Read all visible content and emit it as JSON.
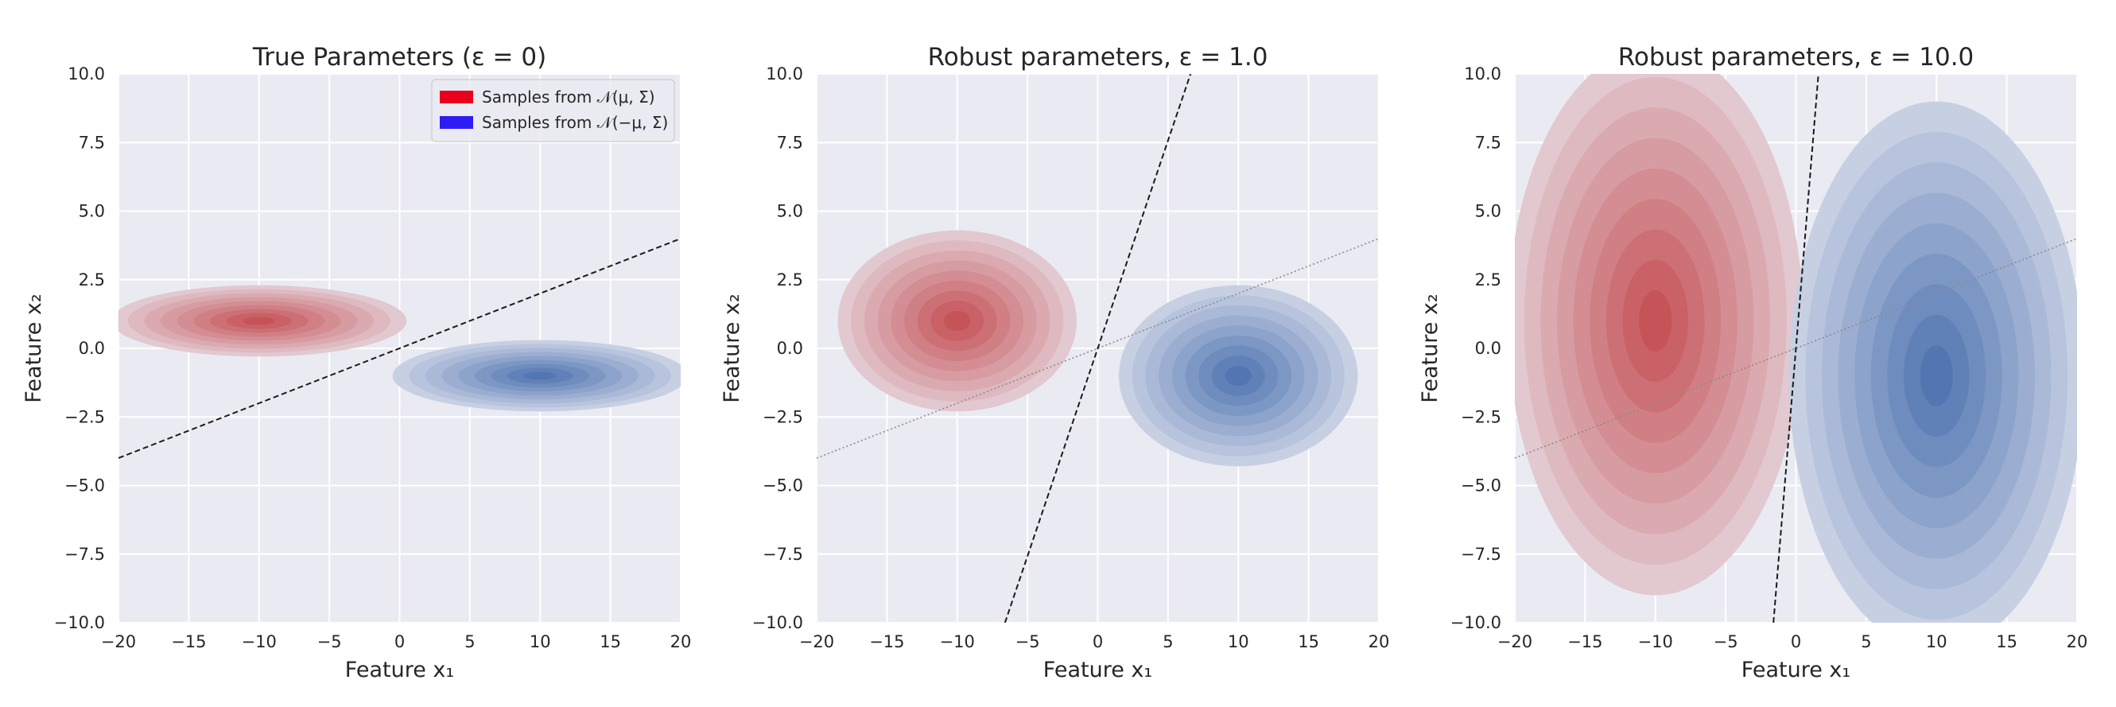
{
  "chart_data": [
    {
      "type": "scatter",
      "title": "True Parameters (ε = 0)",
      "xlabel": "Feature x₁",
      "ylabel": "Feature x₂",
      "xlim": [
        -20,
        20
      ],
      "ylim": [
        -10,
        10
      ],
      "xticks": [
        "−20",
        "−15",
        "−10",
        "−5",
        "0",
        "5",
        "10",
        "15",
        "20"
      ],
      "yticks": [
        "10.0",
        "7.5",
        "5.0",
        "2.5",
        "0.0",
        "−2.5",
        "−5.0",
        "−7.5",
        "−10.0"
      ],
      "grid": true,
      "legend": {
        "position": "top-right",
        "entries": [
          {
            "label": "Samples from 𝒩(μ, Σ)",
            "color": "#e8001c"
          },
          {
            "label": "Samples from 𝒩(−μ, Σ)",
            "color": "#2e1cf5"
          }
        ]
      },
      "series": [
        {
          "label": "Samples from 𝒩(μ, Σ)",
          "color": "#c44e52",
          "center": [
            -10,
            1
          ],
          "spread": [
            10.5,
            1.3
          ]
        },
        {
          "label": "Samples from 𝒩(−μ, Σ)",
          "color": "#4c72b0",
          "center": [
            10,
            -1
          ],
          "spread": [
            10.5,
            1.3
          ]
        }
      ],
      "boundary": {
        "style": "dashed",
        "points": [
          [
            -20,
            -4
          ],
          [
            20,
            4
          ]
        ]
      }
    },
    {
      "type": "scatter",
      "title": "Robust parameters, ε = 1.0",
      "xlabel": "Feature x₁",
      "ylabel": "Feature x₂",
      "xlim": [
        -20,
        20
      ],
      "ylim": [
        -10,
        10
      ],
      "xticks": [
        "−20",
        "−15",
        "−10",
        "−5",
        "0",
        "5",
        "10",
        "15",
        "20"
      ],
      "yticks": [
        "10.0",
        "7.5",
        "5.0",
        "2.5",
        "0.0",
        "−2.5",
        "−5.0",
        "−7.5",
        "−10.0"
      ],
      "grid": true,
      "series": [
        {
          "color": "#c44e52",
          "center": [
            -10,
            1
          ],
          "spread": [
            8.5,
            3.3
          ]
        },
        {
          "color": "#4c72b0",
          "center": [
            10,
            -1
          ],
          "spread": [
            8.5,
            3.3
          ]
        }
      ],
      "boundary": {
        "style": "dashed",
        "points": [
          [
            -6.6,
            -10
          ],
          [
            6.6,
            10
          ]
        ]
      },
      "reference": {
        "style": "dotted",
        "points": [
          [
            -20,
            -4
          ],
          [
            20,
            4
          ]
        ]
      }
    },
    {
      "type": "scatter",
      "title": "Robust parameters, ε = 10.0",
      "xlabel": "Feature x₁",
      "ylabel": "Feature x₂",
      "xlim": [
        -20,
        20
      ],
      "ylim": [
        -10,
        10
      ],
      "xticks": [
        "−20",
        "−15",
        "−10",
        "−5",
        "0",
        "5",
        "10",
        "15",
        "20"
      ],
      "yticks": [
        "10.0",
        "7.5",
        "5.0",
        "2.5",
        "0.0",
        "−2.5",
        "−5.0",
        "−7.5",
        "−10.0"
      ],
      "grid": true,
      "series": [
        {
          "color": "#c44e52",
          "center": [
            -10,
            1
          ],
          "spread": [
            10.5,
            10
          ]
        },
        {
          "color": "#4c72b0",
          "center": [
            10,
            -1
          ],
          "spread": [
            10.5,
            10
          ]
        }
      ],
      "boundary": {
        "style": "dashed",
        "points": [
          [
            -1.6,
            -10
          ],
          [
            1.6,
            10
          ]
        ]
      },
      "reference": {
        "style": "dotted",
        "points": [
          [
            -20,
            -4
          ],
          [
            20,
            4
          ]
        ]
      }
    }
  ]
}
